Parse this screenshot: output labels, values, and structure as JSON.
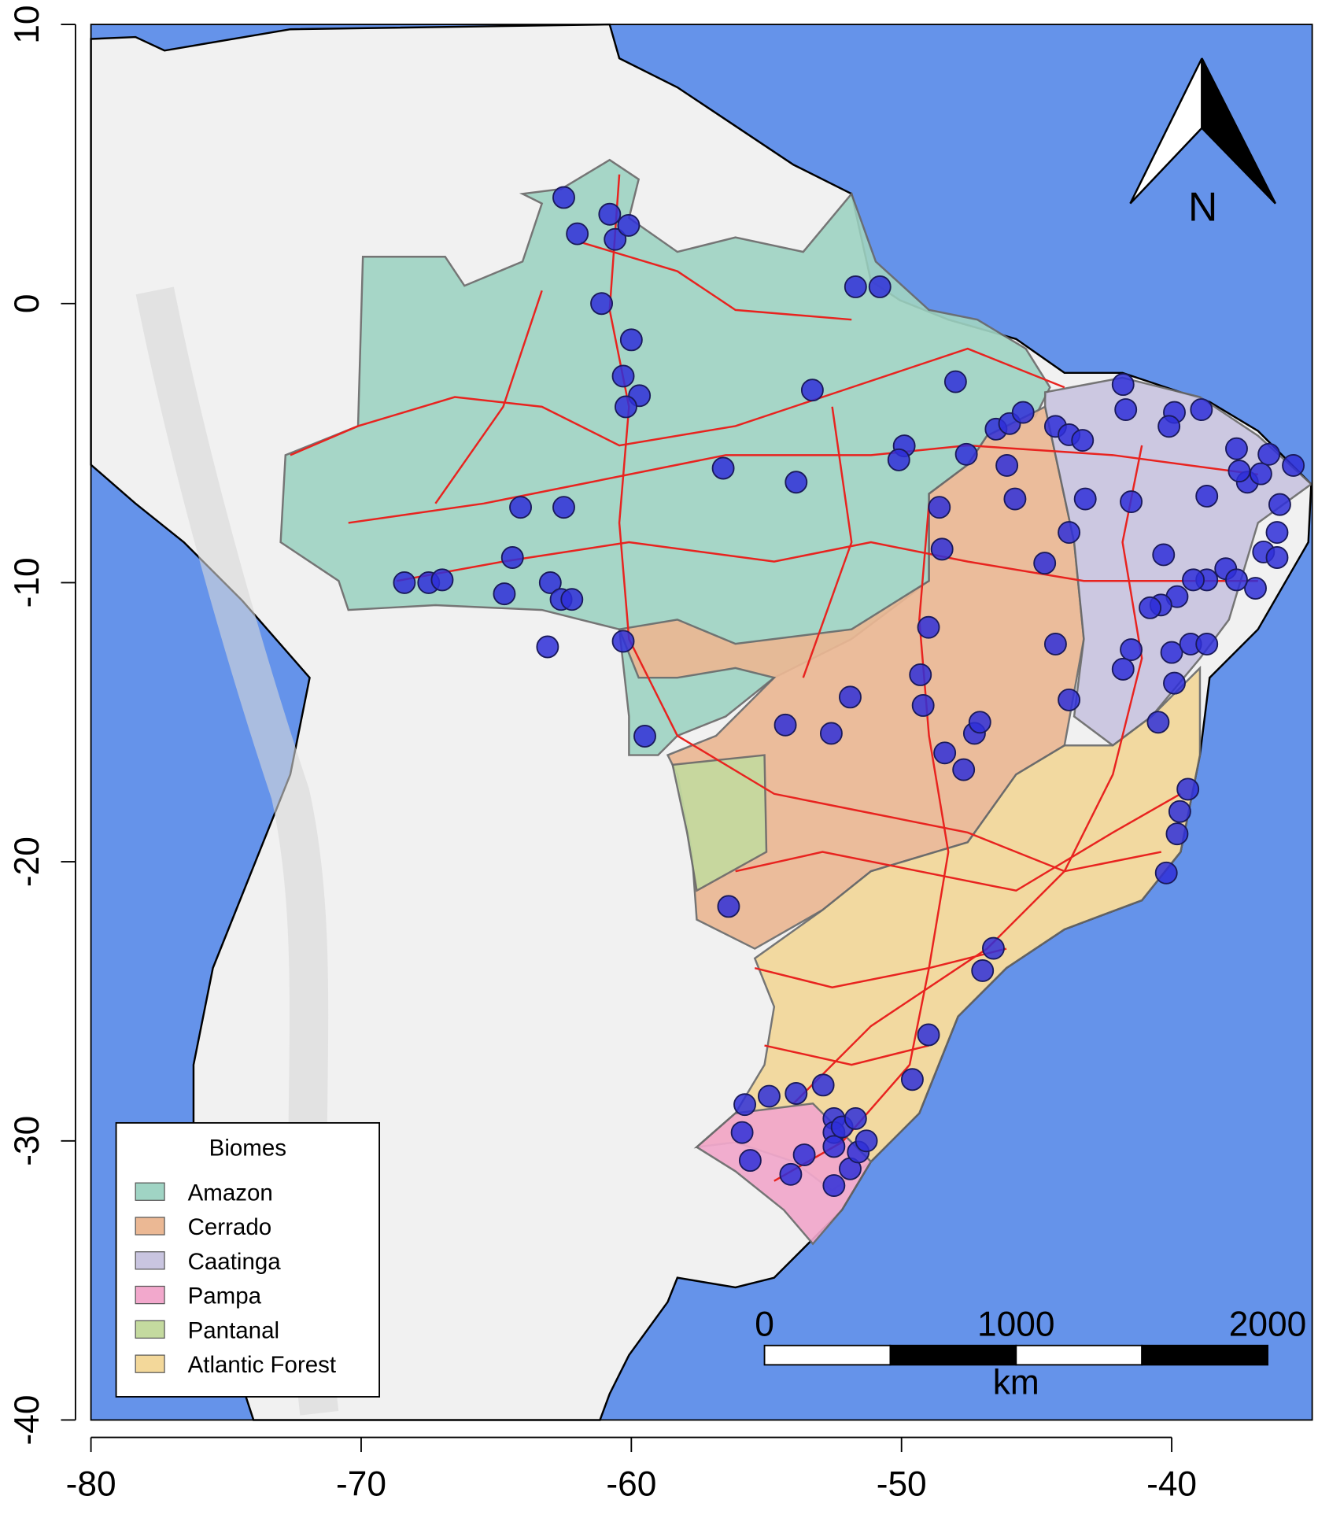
{
  "chart_data": {
    "type": "map",
    "xlim": [
      -80,
      -34.8
    ],
    "ylim": [
      -40,
      10
    ],
    "xticks": [
      -80,
      -70,
      -60,
      -50,
      -40
    ],
    "yticks": [
      10,
      0,
      -10,
      -20,
      -30,
      -40
    ],
    "point_color": "#2f2fd8",
    "x": [
      -62.5,
      -62.0,
      -60.8,
      -60.6,
      -60.1,
      -61.1,
      -60.0,
      -60.3,
      -59.7,
      -60.2,
      -51.7,
      -50.8,
      -53.3,
      -48.0,
      -49.9,
      -50.1,
      -56.6,
      -53.9,
      -64.1,
      -62.5,
      -64.4,
      -64.7,
      -63.0,
      -62.6,
      -62.2,
      -68.4,
      -67.5,
      -67.0,
      -63.1,
      -60.3,
      -59.5,
      -56.4,
      -54.3,
      -52.6,
      -51.9,
      -49.0,
      -49.3,
      -49.2,
      -48.4,
      -47.7,
      -47.3,
      -47.1,
      -48.6,
      -48.5,
      -47.6,
      -46.5,
      -46.0,
      -45.5,
      -46.1,
      -45.8,
      -44.3,
      -43.8,
      -43.3,
      -43.2,
      -43.8,
      -44.7,
      -44.3,
      -43.8,
      -41.8,
      -41.7,
      -39.9,
      -40.1,
      -38.9,
      -41.5,
      -38.7,
      -37.6,
      -37.2,
      -36.7,
      -36.4,
      -35.5,
      -36.0,
      -36.1,
      -36.6,
      -36.1,
      -36.9,
      -40.3,
      -38.0,
      -37.6,
      -38.7,
      -39.2,
      -39.8,
      -40.4,
      -40.8,
      -41.5,
      -41.8,
      -40.0,
      -39.3,
      -38.7,
      -39.9,
      -40.5,
      -39.4,
      -39.7,
      -39.8,
      -40.2,
      -46.6,
      -47.0,
      -49.0,
      -49.6,
      -52.9,
      -53.9,
      -54.9,
      -55.8,
      -55.9,
      -55.6,
      -54.1,
      -53.6,
      -52.5,
      -52.5,
      -52.5,
      -52.5,
      -52.2,
      -51.7,
      -51.9,
      -51.6,
      -51.3,
      -37.5
    ],
    "values": [
      3.8,
      2.5,
      3.2,
      2.3,
      2.8,
      0.0,
      -1.3,
      -2.6,
      -3.3,
      -3.7,
      0.6,
      0.6,
      -3.1,
      -2.8,
      -5.1,
      -5.6,
      -5.9,
      -6.4,
      -7.3,
      -7.3,
      -9.1,
      -10.4,
      -10.0,
      -10.6,
      -10.6,
      -10.0,
      -10.0,
      -9.9,
      -12.3,
      -12.1,
      -15.5,
      -21.6,
      -15.1,
      -15.4,
      -14.1,
      -11.6,
      -13.3,
      -14.4,
      -16.1,
      -16.7,
      -15.4,
      -15.0,
      -7.3,
      -8.8,
      -5.4,
      -4.5,
      -4.3,
      -3.9,
      -5.8,
      -7.0,
      -4.4,
      -4.7,
      -4.9,
      -7.0,
      -8.2,
      -9.3,
      -12.2,
      -14.2,
      -2.9,
      -3.8,
      -3.9,
      -4.4,
      -3.8,
      -7.1,
      -6.9,
      -5.2,
      -6.4,
      -6.1,
      -5.4,
      -5.8,
      -7.2,
      -8.2,
      -8.9,
      -9.1,
      -10.2,
      -9.0,
      -9.5,
      -9.9,
      -9.9,
      -9.9,
      -10.5,
      -10.8,
      -10.9,
      -12.4,
      -13.1,
      -12.5,
      -12.2,
      -12.2,
      -13.6,
      -15.0,
      -17.4,
      -18.2,
      -19.0,
      -20.4,
      -23.1,
      -23.9,
      -26.2,
      -27.8,
      -28.0,
      -28.3,
      -28.4,
      -28.7,
      -29.7,
      -30.7,
      -31.2,
      -30.5,
      -29.2,
      -31.6,
      -29.7,
      -30.2,
      -29.5,
      -29.2,
      -31.0,
      -30.4,
      -30.0,
      -6.0
    ],
    "legend": {
      "title": "Biomes",
      "entries": [
        {
          "name": "Amazon",
          "color": "#a0d4c4"
        },
        {
          "name": "Cerrado",
          "color": "#ebb894"
        },
        {
          "name": "Caatinga",
          "color": "#c9c5e0"
        },
        {
          "name": "Pampa",
          "color": "#f2a8cc"
        },
        {
          "name": "Pantanal",
          "color": "#c4da9f"
        },
        {
          "name": "Atlantic Forest",
          "color": "#f3d89a"
        }
      ]
    },
    "scale_bar": {
      "ticks": [
        0,
        1000,
        2000
      ],
      "unit": "km"
    },
    "north": "N"
  }
}
